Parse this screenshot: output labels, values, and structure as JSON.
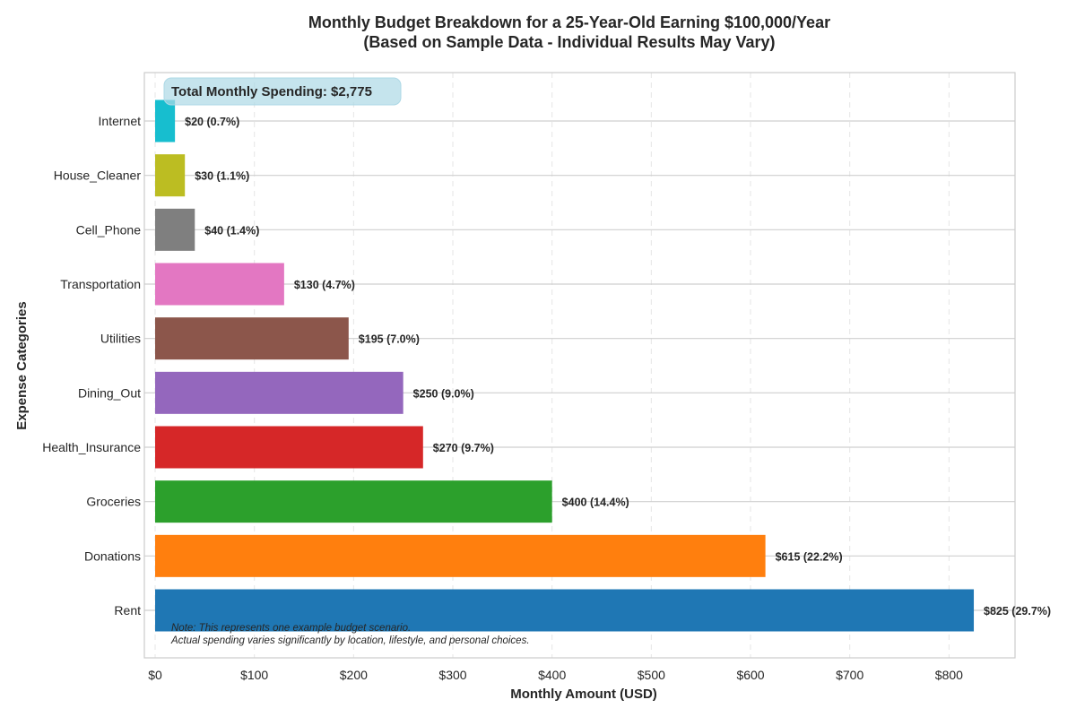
{
  "chart_data": {
    "type": "bar",
    "orientation": "horizontal",
    "title": "Monthly Budget Breakdown for a 25-Year-Old Earning $100,000/Year",
    "subtitle": "(Based on Sample Data - Individual Results May Vary)",
    "xlabel": "Monthly Amount (USD)",
    "ylabel": "Expense Categories",
    "xlim": [
      0,
      868
    ],
    "x_ticks": [
      0,
      100,
      200,
      300,
      400,
      500,
      600,
      700,
      800
    ],
    "x_tick_labels": [
      "$0",
      "$100",
      "$200",
      "$300",
      "$400",
      "$500",
      "$600",
      "$700",
      "$800"
    ],
    "grid": true,
    "categories": [
      "Rent",
      "Donations",
      "Groceries",
      "Health_Insurance",
      "Dining_Out",
      "Utilities",
      "Transportation",
      "Cell_Phone",
      "House_Cleaner",
      "Internet"
    ],
    "values": [
      825,
      615,
      400,
      270,
      250,
      195,
      130,
      40,
      30,
      20
    ],
    "colors": [
      "#1f77b4",
      "#ff7f0e",
      "#2ca02c",
      "#d62728",
      "#9467bd",
      "#8c564b",
      "#e377c2",
      "#7f7f7f",
      "#bcbd22",
      "#17becf"
    ],
    "data_labels": [
      "$825 (29.7%)",
      "$615 (22.2%)",
      "$400 (14.4%)",
      "$270 (9.7%)",
      "$250 (9.0%)",
      "$195 (7.0%)",
      "$130 (4.7%)",
      "$40 (1.4%)",
      "$30 (1.1%)",
      "$20 (0.7%)"
    ],
    "annotations": {
      "total": "Total Monthly Spending: $2,775",
      "note_line1": "Note: This represents one example budget scenario.",
      "note_line2": "Actual spending varies significantly by location, lifestyle, and personal choices."
    }
  }
}
